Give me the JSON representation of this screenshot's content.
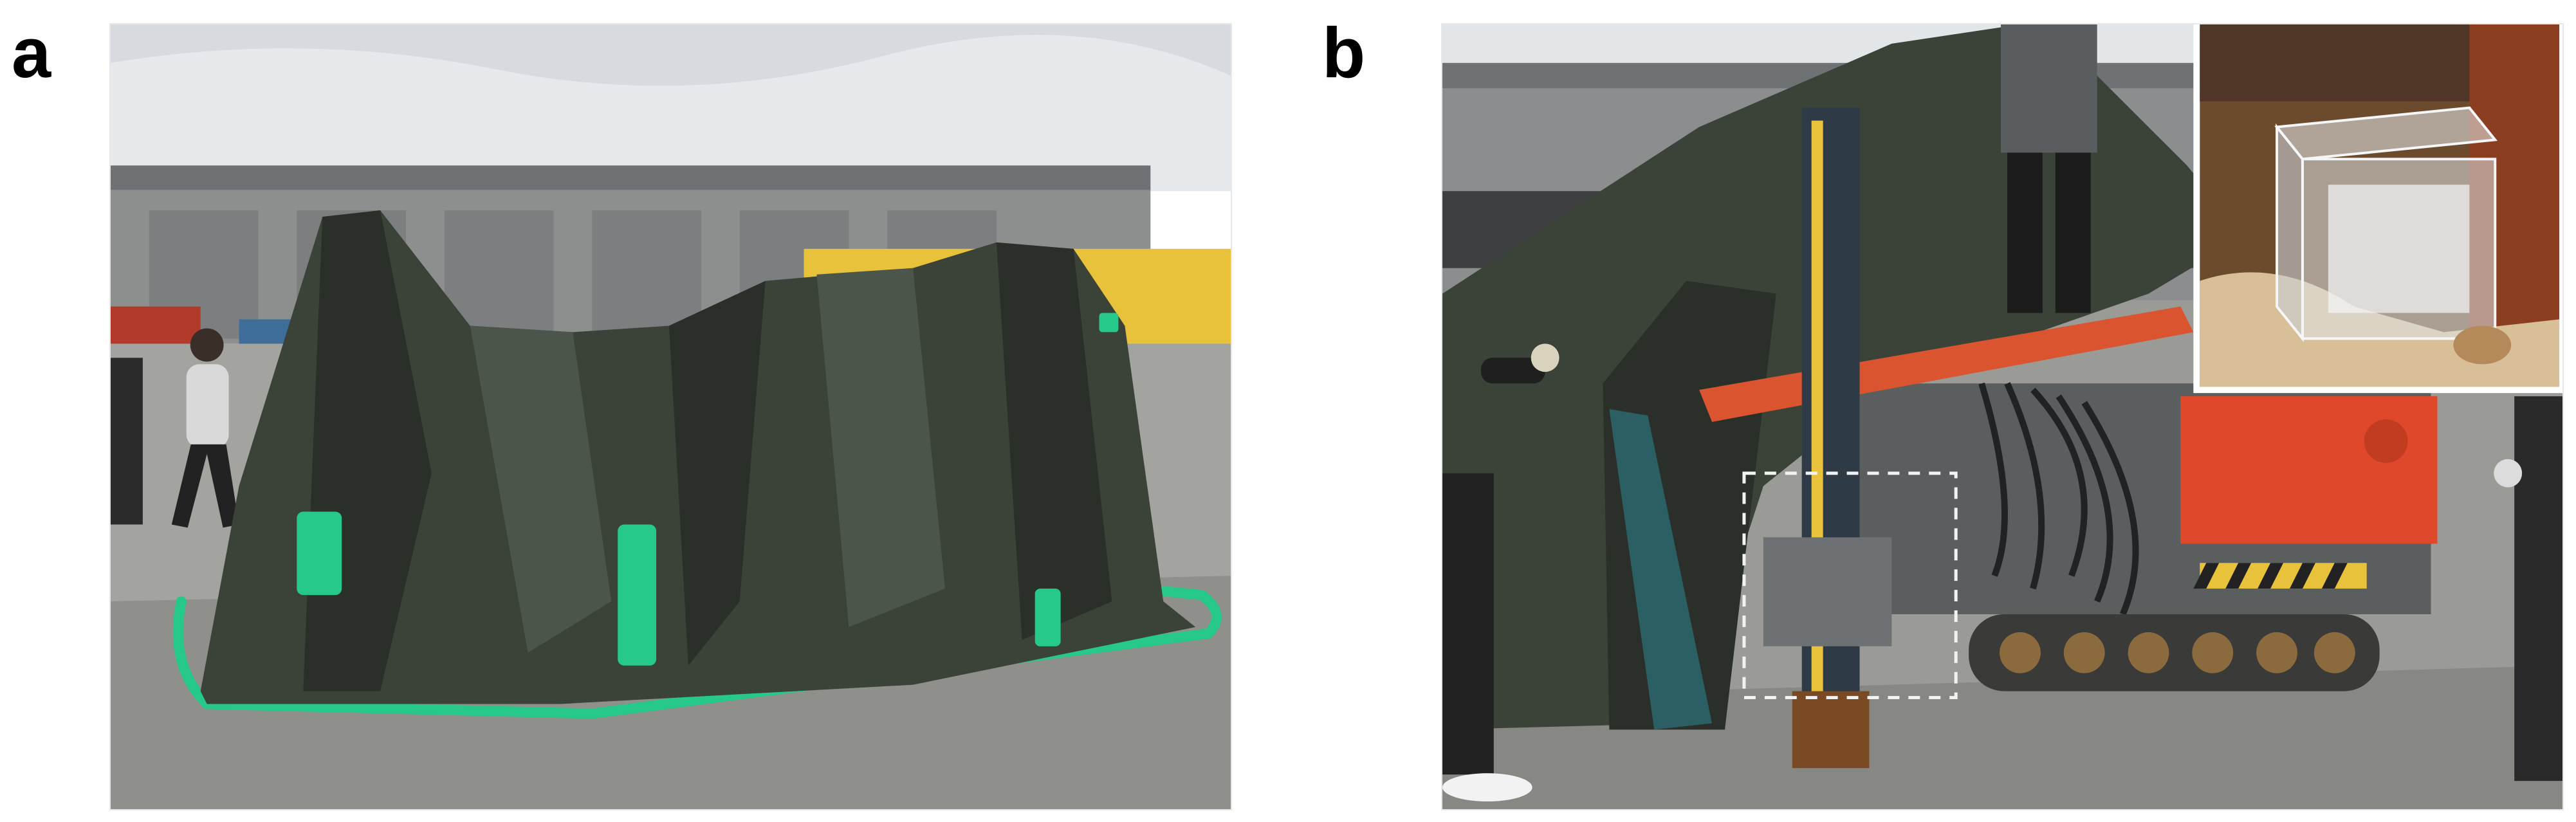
{
  "panels": [
    {
      "label": "a",
      "content": "tarp-covered-machine-photo"
    },
    {
      "label": "b",
      "content": "uncovering-drill-rig-photo",
      "inset": "clear-acrylic-box-on-sediment"
    }
  ],
  "colors": {
    "sky": "#e9ecef",
    "tarp": "#3b4238",
    "tarp_dark": "#2a3029",
    "tape_green": "#27c98a",
    "ground": "#9a9a96",
    "warehouse": "#8d8f8f",
    "container_yellow": "#e7c23a",
    "rig_orange": "#e0482b",
    "mast_blue": "#2e3a45"
  }
}
